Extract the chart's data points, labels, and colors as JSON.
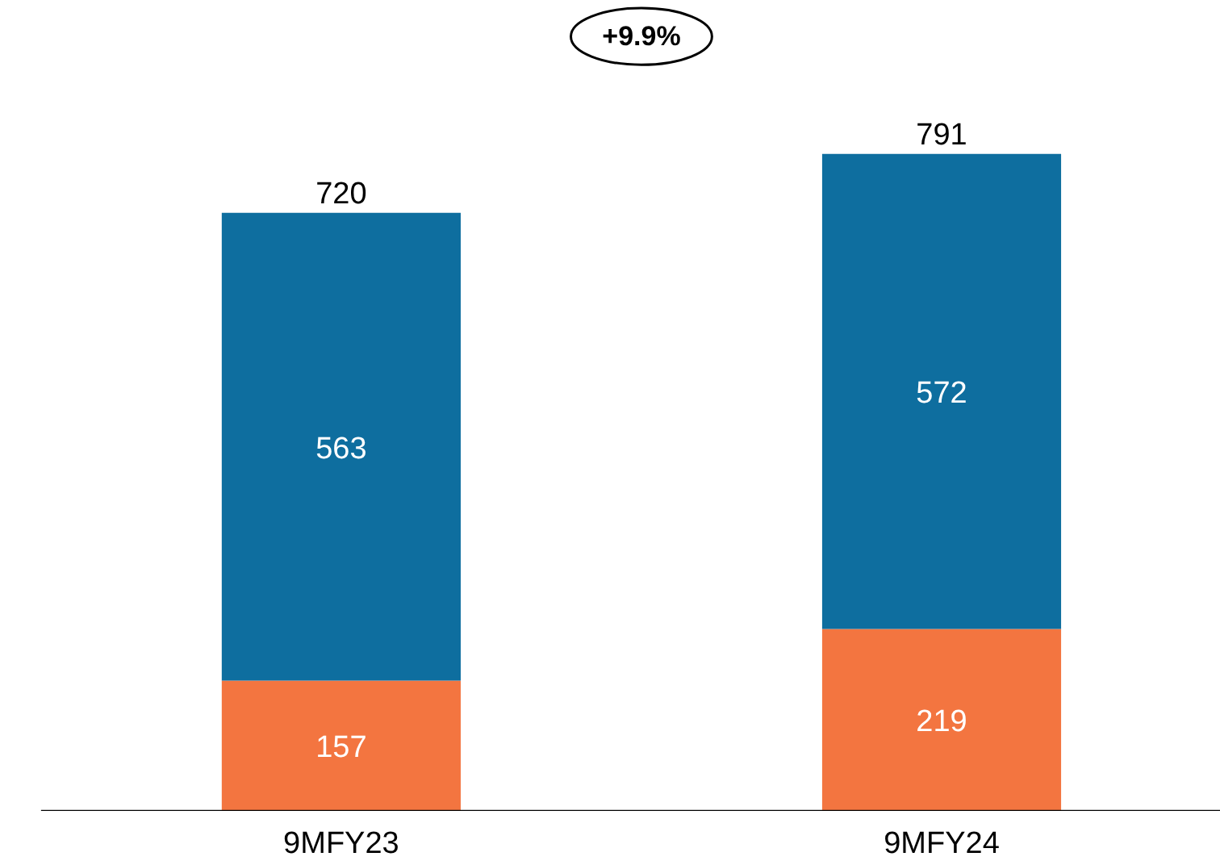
{
  "chart_data": {
    "type": "bar",
    "stacked": true,
    "categories": [
      "9MFY23",
      "9MFY24"
    ],
    "series": [
      {
        "color": "#f37540",
        "values": [
          157,
          219
        ]
      },
      {
        "color": "#0e6e9f",
        "values": [
          563,
          572
        ]
      }
    ],
    "data_labels": true,
    "totals": [
      "720",
      "791"
    ],
    "annotations": [
      "+9.9%"
    ],
    "grid": false
  }
}
